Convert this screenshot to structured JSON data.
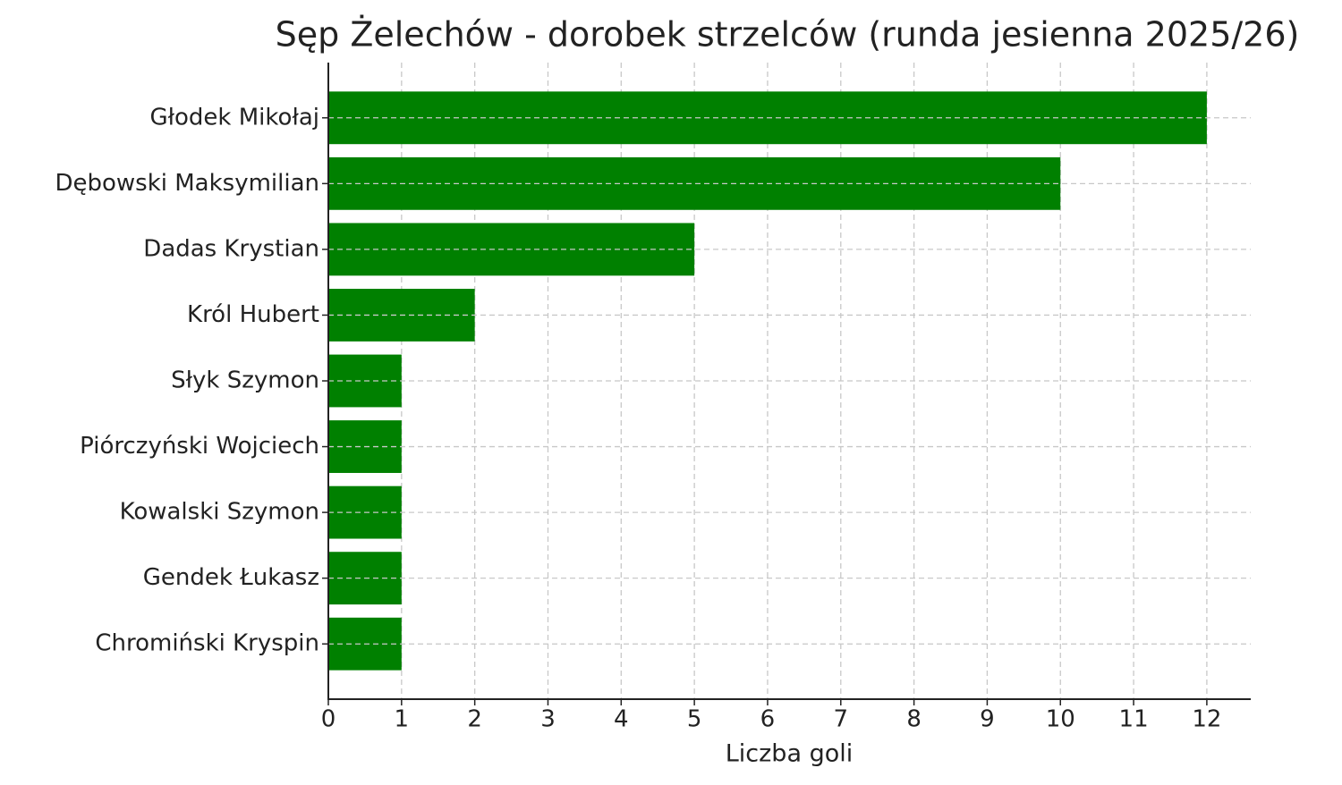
{
  "chart_data": {
    "type": "barh",
    "title": "Sęp Żelechów - dorobek strzelców (runda jesienna 2025/26)",
    "x_label": "Liczba goli",
    "categories": [
      "Głodek Mikołaj",
      "Dębowski Maksymilian",
      "Dadas Krystian",
      "Król Hubert",
      "Słyk Szymon",
      "Piórczyński Wojciech",
      "Kowalski Szymon",
      "Gendek Łukasz",
      "Chromiński Kryspin"
    ],
    "values": [
      12,
      10,
      5,
      2,
      1,
      1,
      1,
      1,
      1
    ],
    "color": "#008000",
    "xlim": [
      0,
      12.6
    ],
    "xticks": [
      0,
      1,
      2,
      3,
      4,
      5,
      6,
      7,
      8,
      9,
      10,
      11,
      12
    ],
    "grid": true
  }
}
